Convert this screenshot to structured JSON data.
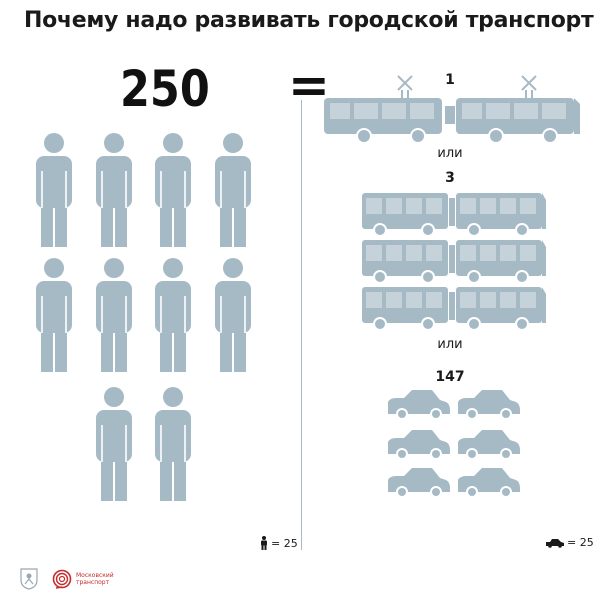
{
  "title": "Почему надо развивать городской транспорт",
  "people_count": "250",
  "equals_sign": "=",
  "options": [
    {
      "count": "1",
      "vehicle": "tram"
    },
    {
      "count": "3",
      "vehicle": "bus"
    },
    {
      "count": "147",
      "vehicle": "car"
    }
  ],
  "separator_word": "или",
  "legend_people": "= 25",
  "legend_car": "= 25",
  "logo_text": "Московский транспорт",
  "colors": {
    "icon": "#a6bac6",
    "icon_detail": "#ffffff",
    "text": "#1a1a1a",
    "logo_red": "#c62b2b"
  }
}
